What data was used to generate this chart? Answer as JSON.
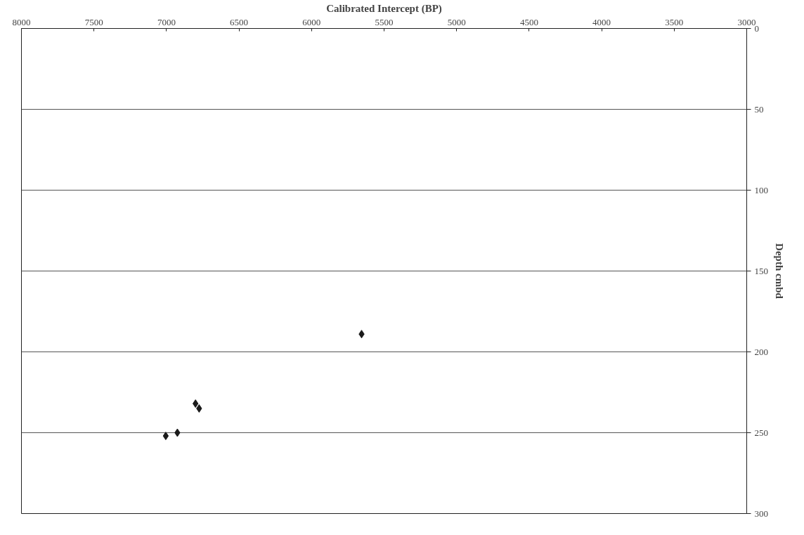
{
  "chart_data": {
    "type": "scatter",
    "xlabel": "Calibrated Intercept (BP)",
    "ylabel": "Depth cmbd",
    "x": [
      5655,
      6800,
      6775,
      6925,
      7005
    ],
    "series": [
      {
        "color": "#1a1a1a",
        "values": [
          189,
          232,
          235,
          250,
          252
        ]
      }
    ],
    "xlim": [
      8000,
      3000
    ],
    "xticks": [
      8000,
      7500,
      7000,
      6500,
      6000,
      5500,
      5000,
      4500,
      4000,
      3500,
      3000
    ],
    "ylim": [
      300,
      0
    ],
    "yticks": [
      0,
      50,
      100,
      150,
      200,
      250,
      300
    ],
    "grid": "y",
    "marker": "diamond"
  }
}
